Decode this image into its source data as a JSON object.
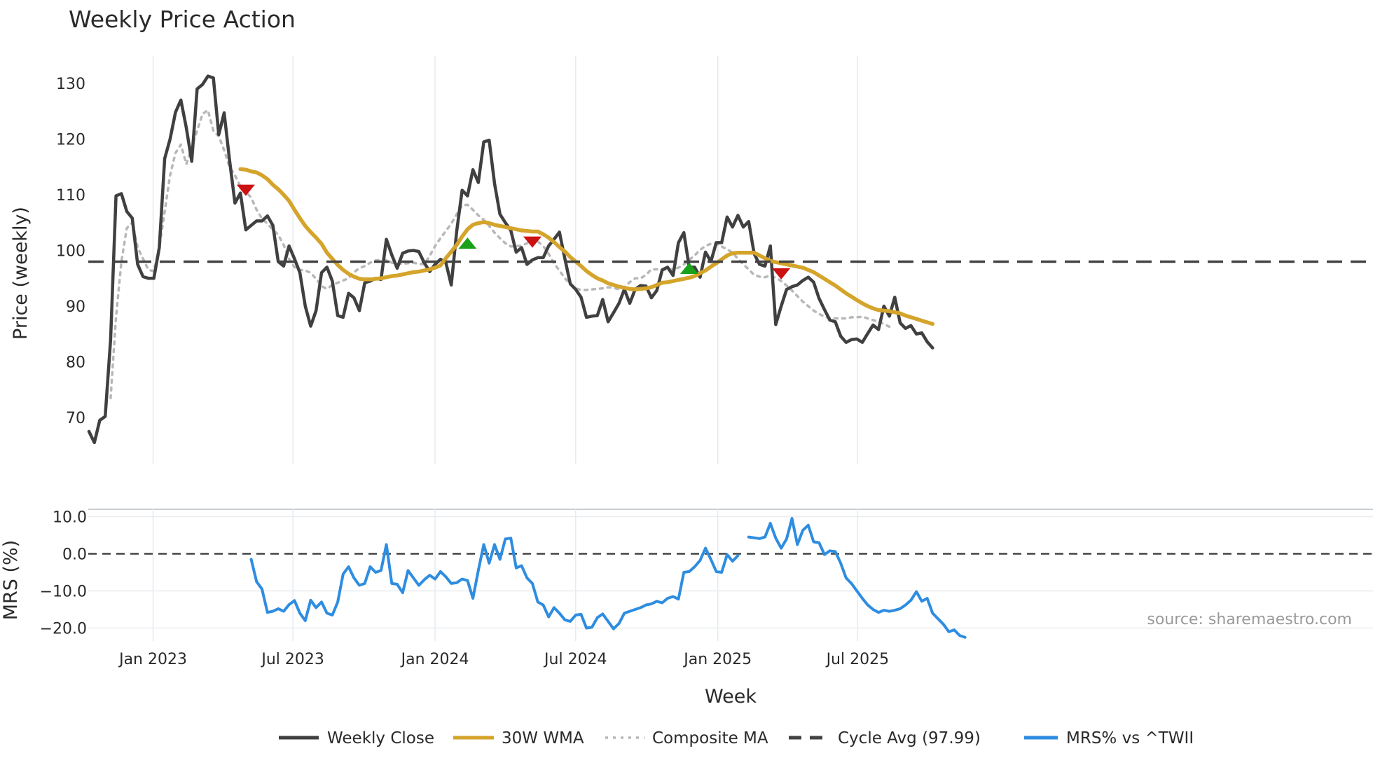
{
  "chart_data": [
    {
      "type": "line",
      "title": "Weekly Price Action",
      "xlabel": "",
      "ylabel": "Price (weekly)",
      "ylim": [
        62,
        136
      ],
      "yticks": [
        70,
        80,
        90,
        100,
        110,
        120,
        130
      ],
      "x_start": "2022-10-10",
      "x_step_days": 7,
      "series": [
        {
          "name": "Weekly Close",
          "color": "#404040",
          "values": [
            67.5,
            65.5,
            69.5,
            70.2,
            84,
            109.8,
            110.2,
            107,
            105.8,
            97.5,
            95.3,
            95,
            95,
            100.5,
            116.5,
            120,
            124.8,
            127,
            122,
            116,
            129,
            129.8,
            131.3,
            131,
            120.8,
            124.7,
            116.2,
            108.5,
            110.3,
            103.7,
            104.5,
            105.3,
            105.3,
            106.2,
            104.5,
            98,
            97.2,
            100.8,
            98.5,
            96,
            90,
            86.4,
            89.2,
            96,
            97,
            94.5,
            88.3,
            88,
            92.3,
            91.5,
            89.2,
            94.2,
            94.5,
            95,
            94.8,
            102,
            99.2,
            96.8,
            99.5,
            99.9,
            100,
            99.8,
            97.8,
            96.2,
            97.5,
            98.4,
            97.8,
            93.8,
            103.5,
            110.8,
            109.8,
            114.5,
            112.2,
            119.5,
            119.8,
            112,
            106.5,
            105,
            103.6,
            99.7,
            100.5,
            97.5,
            98.3,
            98.7,
            98.7,
            100.8,
            102,
            103.3,
            98.5,
            94,
            93,
            91.6,
            88,
            88.2,
            88.3,
            91.2,
            87.2,
            88.8,
            90.5,
            93,
            90.5,
            93,
            93.7,
            93.6,
            91.5,
            92.8,
            96.5,
            97,
            95.5,
            101.4,
            103.2,
            97,
            97,
            95.2,
            99.7,
            98,
            101.4,
            101.4,
            106,
            104.2,
            106.3,
            104.2,
            105.2,
            99.4,
            97.5,
            97.2,
            100.8,
            86.7,
            90,
            93,
            93.5,
            93.8,
            94.6,
            95.2,
            94.3,
            91.4,
            89.4,
            87.5,
            87.2,
            84.6,
            83.5,
            84,
            84.1,
            83.5,
            85.1,
            86.6,
            85.8,
            90,
            88.2,
            91.6,
            87,
            86,
            86.5,
            85,
            85.2,
            83.6,
            82.5
          ]
        },
        {
          "name": "30W WMA",
          "color": "#d4a42b",
          "start_index": 28,
          "values": [
            114.6,
            114.5,
            114.2,
            114,
            113.5,
            112.8,
            111.8,
            111,
            110,
            108.9,
            107.3,
            105.8,
            104.4,
            103.3,
            102.3,
            101.2,
            99.6,
            98.5,
            97.4,
            96.5,
            95.8,
            95.3,
            94.9,
            94.8,
            94.8,
            94.9,
            95,
            95.2,
            95.4,
            95.5,
            95.7,
            95.9,
            96.1,
            96.2,
            96.4,
            96.6,
            96.9,
            97.3,
            98.6,
            99.8,
            101,
            102.5,
            103.8,
            104.6,
            104.9,
            105.1,
            104.9,
            104.6,
            104.4,
            104.2,
            104,
            103.8,
            103.6,
            103.5,
            103.4,
            103.4,
            102.9,
            102.3,
            101.5,
            100.6,
            99.8,
            98.8,
            98,
            97.2,
            96.3,
            95.6,
            95,
            94.6,
            94.1,
            93.8,
            93.5,
            93.3,
            93.1,
            93,
            93.1,
            93.2,
            93.4,
            93.8,
            94.2,
            94.3,
            94.5,
            94.7,
            94.9,
            95.1,
            95.4,
            95.9,
            96.4,
            97.1,
            97.7,
            98.4,
            99.1,
            99.5,
            99.6,
            99.6,
            99.6,
            99.6,
            99.1,
            98.6,
            98.1,
            97.9,
            97.7,
            97.5,
            97.3,
            97.1,
            96.9,
            96.5,
            96.1,
            95.5,
            94.9,
            94.3,
            93.7,
            93,
            92.3,
            91.7,
            91.1,
            90.5,
            90,
            89.6,
            89.3,
            89.2,
            89.1,
            88.9,
            88.7,
            88.3,
            88,
            87.7,
            87.4,
            87.1,
            86.8
          ]
        },
        {
          "name": "Composite MA",
          "color": "#b8b8b8",
          "start_index": 4,
          "values": [
            73.5,
            88,
            98,
            104,
            105,
            100.5,
            98.5,
            96.5,
            96.3,
            100.5,
            107,
            113.5,
            117.5,
            119,
            115.5,
            118.5,
            121.5,
            124.5,
            125.2,
            121.5,
            120.5,
            118,
            115,
            113.5,
            111.5,
            110.5,
            109.5,
            107.3,
            105.7,
            104.8,
            103.7,
            102.8,
            101,
            98.5,
            97,
            96.5,
            96.4,
            96,
            94.9,
            93.6,
            93.1,
            93.8,
            94.2,
            94.6,
            95,
            96.1,
            96.8,
            97.2,
            97.8,
            98.2,
            98.3,
            98.3,
            97.8,
            97.6,
            97.6,
            97.7,
            97.8,
            97.6,
            97.5,
            99,
            100.8,
            102.2,
            103.5,
            104.8,
            106.5,
            108.1,
            108.2,
            107.3,
            106.3,
            105.5,
            104.4,
            103.2,
            102.2,
            101.3,
            100.7,
            100.8,
            100.8,
            101.3,
            102,
            101.6,
            100.8,
            99.4,
            97.7,
            96.4,
            95,
            94,
            93.2,
            92.9,
            92.9,
            93,
            93.1,
            93.2,
            93.4,
            93.3,
            93,
            93.4,
            94.3,
            95,
            95,
            95.6,
            96.6,
            96.6,
            96.5,
            96.5,
            96.6,
            96.9,
            97.5,
            98.3,
            99.1,
            100.1,
            100.8,
            101.2,
            101.2,
            100.7,
            100.2,
            99.6,
            98.5,
            97.5,
            96.6,
            95.6,
            95.3,
            95.2,
            95.5,
            95.1,
            94.5,
            93.7,
            92.8,
            91.8,
            90.8,
            90,
            89.2,
            88.6,
            88.1,
            87.9,
            87.8,
            87.8,
            87.8,
            88,
            88,
            88.1,
            87.8,
            87.5,
            87.2,
            86.8,
            86.3
          ]
        },
        {
          "name": "Cycle Avg (97.99)",
          "color": "#444444",
          "value": 97.99
        }
      ],
      "annotations": {
        "sell_signals": [
          {
            "week_index": 29,
            "value": 110.8
          },
          {
            "week_index": 82,
            "value": 101.5
          },
          {
            "week_index": 128,
            "value": 95.8
          }
        ],
        "buy_signals": [
          {
            "week_index": 70,
            "value": 101.3
          },
          {
            "week_index": 111,
            "value": 96.8
          }
        ]
      }
    },
    {
      "type": "line",
      "xlabel": "Week",
      "ylabel": "MRS (%)",
      "ylim": [
        -25,
        12
      ],
      "yticks": [
        10,
        0,
        -10,
        -20
      ],
      "ytick_labels": [
        "10.0",
        "0.0",
        "−10.0",
        "−20.0"
      ],
      "xticks": [
        "Jan 2023",
        "Jul 2023",
        "Jan 2024",
        "Jul 2024",
        "Jan 2025",
        "Jul 2025"
      ],
      "zero_line": 0,
      "series": [
        {
          "name": "MRS% vs ^TWII",
          "color": "#2e8de0",
          "start_index": 30,
          "values": [
            -1.5,
            -7.5,
            -9.5,
            -15.8,
            -15.5,
            -14.8,
            -15.5,
            -13.7,
            -12.6,
            -16,
            -18,
            -12.5,
            -14.5,
            -13,
            -16,
            -16.5,
            -13,
            -5.5,
            -3.5,
            -6.5,
            -8.5,
            -8,
            -3.5,
            -5,
            -4.5,
            2.5,
            -8,
            -8.2,
            -10.5,
            -4.5,
            -6.5,
            -8.5,
            -7,
            -5.8,
            -6.8,
            -4.8,
            -6.2,
            -8,
            -7.8,
            -6.8,
            -7.2,
            -12,
            -4.5,
            2.5,
            -2.5,
            2.5,
            -1.5,
            4,
            4.2,
            -3.8,
            -3.2,
            -6.5,
            -8,
            -13,
            -13.8,
            -17,
            -14.5,
            -16,
            -17.8,
            -18.2,
            -16.5,
            -16.3,
            -20,
            -19.8,
            -17.2,
            -16.2,
            -18.2,
            -20.2,
            -18.8,
            -16,
            -15.5,
            -15,
            -14.5,
            -13.8,
            -13.5,
            -12.8,
            -13.2,
            -12,
            -11.5,
            -12.2,
            -5,
            -4.8,
            -3.5,
            -1.8,
            1.5,
            -1.5,
            -4.8,
            -5,
            -0.2,
            -2,
            -0.5,
            null,
            4.5,
            4.3,
            4.1,
            4.5,
            8.2,
            4.2,
            1.5,
            4,
            9.5,
            2.5,
            6.3,
            7.7,
            3.2,
            3,
            -0.2,
            0.8,
            0.6,
            -2.5,
            -6.5,
            -8,
            -10,
            -12,
            -13.8,
            -15,
            -15.8,
            -15.2,
            -15.5,
            -15.2,
            -14.8,
            -13.8,
            -12.5,
            -10.2,
            -12.8,
            -12,
            -16,
            -17.5,
            -19,
            -21,
            -20.5,
            -22,
            -22.5
          ]
        }
      ],
      "annotations": {
        "source": "source: sharemaestro.com"
      }
    }
  ],
  "legend": [
    {
      "label": "Weekly Close",
      "style": "solid",
      "color": "#404040"
    },
    {
      "label": "30W WMA",
      "style": "solid",
      "color": "#d4a42b"
    },
    {
      "label": "Composite MA",
      "style": "dotted",
      "color": "#b8b8b8"
    },
    {
      "label": "Cycle Avg (97.99)",
      "style": "dashed",
      "color": "#444444"
    },
    {
      "label": "MRS% vs ^TWII",
      "style": "solid",
      "color": "#2e8de0"
    }
  ],
  "colors": {
    "sell_marker": "#cc1111",
    "buy_marker": "#1aa11a",
    "grid": "#e6ebf0"
  }
}
